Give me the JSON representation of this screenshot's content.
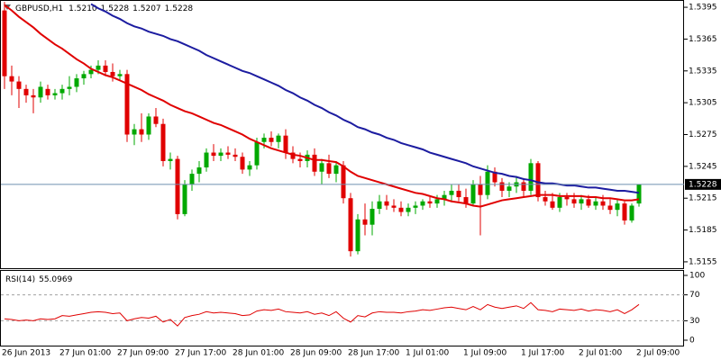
{
  "chart_data": {
    "type": "candlestick",
    "title": "GBPUSD,H1",
    "header_values": [
      "1.5210",
      "1.5228",
      "1.5207",
      "1.5228"
    ],
    "categories": [
      "26 Jun 2013",
      null,
      null,
      null,
      null,
      null,
      null,
      null,
      "27 Jun 01:00",
      null,
      null,
      null,
      null,
      null,
      null,
      null,
      "27 Jun 09:00",
      null,
      null,
      null,
      null,
      null,
      null,
      null,
      "27 Jun 17:00",
      null,
      null,
      null,
      null,
      null,
      null,
      null,
      "28 Jun 01:00",
      null,
      null,
      null,
      null,
      null,
      null,
      null,
      "28 Jun 09:00",
      null,
      null,
      null,
      null,
      null,
      null,
      null,
      "28 Jun 17:00",
      null,
      null,
      null,
      null,
      null,
      null,
      null,
      "1 Jul 01:00",
      null,
      null,
      null,
      null,
      null,
      null,
      null,
      "1 Jul 09:00",
      null,
      null,
      null,
      null,
      null,
      null,
      null,
      "1 Jul 17:00",
      null,
      null,
      null,
      null,
      null,
      null,
      null,
      "2 Jul 01:00",
      null,
      null,
      null,
      null,
      null,
      null,
      null,
      "2 Jul 09:00"
    ],
    "open": [
      1.5392,
      1.533,
      1.5325,
      1.5318,
      1.5312,
      1.531,
      1.5318,
      1.5312,
      1.5314,
      1.5318,
      1.532,
      1.5328,
      1.5332,
      1.5336,
      1.534,
      1.5334,
      1.533,
      1.5332,
      1.5275,
      1.528,
      1.5275,
      1.5292,
      1.5285,
      1.525,
      1.5252,
      1.52,
      1.5228,
      1.5238,
      1.5244,
      1.5258,
      1.5255,
      1.5258,
      1.5256,
      1.5254,
      1.5242,
      1.5246,
      1.5268,
      1.5272,
      1.5268,
      1.5274,
      1.5258,
      1.5252,
      1.525,
      1.5256,
      1.524,
      1.5248,
      1.5238,
      1.5246,
      1.5215,
      1.5165,
      1.5195,
      1.519,
      1.5205,
      1.5212,
      1.5208,
      1.5206,
      1.5202,
      1.5206,
      1.5208,
      1.5212,
      1.521,
      1.5214,
      1.5218,
      1.5222,
      1.5216,
      1.521,
      1.5228,
      1.5218,
      1.524,
      1.523,
      1.5222,
      1.5226,
      1.523,
      1.5222,
      1.5248,
      1.5216,
      1.5212,
      1.5206,
      1.5216,
      1.5214,
      1.521,
      1.5214,
      1.5208,
      1.5212,
      1.5208,
      1.5204,
      1.521,
      1.5194,
      1.521
    ],
    "high": [
      1.54,
      1.534,
      1.533,
      1.5322,
      1.5318,
      1.5325,
      1.5322,
      1.5318,
      1.5322,
      1.533,
      1.5332,
      1.5335,
      1.534,
      1.5345,
      1.5345,
      1.5342,
      1.5336,
      1.5336,
      1.5285,
      1.5295,
      1.5295,
      1.53,
      1.529,
      1.5258,
      1.5255,
      1.5232,
      1.5242,
      1.525,
      1.5262,
      1.5266,
      1.5262,
      1.5264,
      1.5262,
      1.5258,
      1.525,
      1.5272,
      1.5276,
      1.5278,
      1.5276,
      1.528,
      1.5264,
      1.5258,
      1.526,
      1.5262,
      1.5252,
      1.5256,
      1.525,
      1.525,
      1.522,
      1.52,
      1.521,
      1.5212,
      1.5218,
      1.5218,
      1.5214,
      1.5212,
      1.521,
      1.5212,
      1.5214,
      1.5216,
      1.5218,
      1.5222,
      1.5228,
      1.5228,
      1.5224,
      1.5232,
      1.5236,
      1.5246,
      1.5244,
      1.5234,
      1.523,
      1.5236,
      1.5234,
      1.5252,
      1.525,
      1.5222,
      1.522,
      1.522,
      1.522,
      1.522,
      1.5218,
      1.5218,
      1.5216,
      1.5218,
      1.5214,
      1.5214,
      1.5212,
      1.521,
      1.5228
    ],
    "low": [
      1.5318,
      1.5312,
      1.53,
      1.5305,
      1.5295,
      1.5305,
      1.5308,
      1.5308,
      1.5308,
      1.5312,
      1.5315,
      1.5322,
      1.5328,
      1.5332,
      1.533,
      1.5325,
      1.5326,
      1.5268,
      1.5265,
      1.5268,
      1.527,
      1.5282,
      1.5245,
      1.5242,
      1.5195,
      1.5198,
      1.5222,
      1.523,
      1.524,
      1.525,
      1.525,
      1.5252,
      1.525,
      1.5238,
      1.5236,
      1.5242,
      1.5262,
      1.5264,
      1.5262,
      1.5252,
      1.5248,
      1.5244,
      1.5244,
      1.5236,
      1.5228,
      1.5234,
      1.523,
      1.521,
      1.516,
      1.5162,
      1.518,
      1.518,
      1.52,
      1.5204,
      1.5202,
      1.5198,
      1.5198,
      1.52,
      1.5204,
      1.5206,
      1.5206,
      1.5208,
      1.5212,
      1.5212,
      1.5206,
      1.5208,
      1.518,
      1.5214,
      1.5226,
      1.5216,
      1.5216,
      1.522,
      1.5216,
      1.5218,
      1.5212,
      1.5208,
      1.5204,
      1.5202,
      1.5208,
      1.5206,
      1.5204,
      1.5206,
      1.5204,
      1.5204,
      1.52,
      1.5198,
      1.519,
      1.5192,
      1.5207
    ],
    "close": [
      1.533,
      1.5325,
      1.5318,
      1.5312,
      1.531,
      1.532,
      1.5312,
      1.5314,
      1.5318,
      1.532,
      1.5328,
      1.5332,
      1.5336,
      1.534,
      1.5334,
      1.533,
      1.5332,
      1.5275,
      1.528,
      1.5275,
      1.5292,
      1.5285,
      1.525,
      1.5252,
      1.52,
      1.5228,
      1.5238,
      1.5244,
      1.5258,
      1.5255,
      1.5258,
      1.5256,
      1.5254,
      1.5242,
      1.5246,
      1.5268,
      1.5272,
      1.5268,
      1.5274,
      1.5258,
      1.5252,
      1.525,
      1.5256,
      1.524,
      1.5248,
      1.5238,
      1.5246,
      1.5215,
      1.5165,
      1.5195,
      1.519,
      1.5205,
      1.5212,
      1.5208,
      1.5206,
      1.5202,
      1.5206,
      1.5208,
      1.5212,
      1.521,
      1.5214,
      1.5218,
      1.5222,
      1.5216,
      1.521,
      1.5228,
      1.5218,
      1.524,
      1.523,
      1.5222,
      1.5226,
      1.523,
      1.5222,
      1.5248,
      1.5216,
      1.5212,
      1.5206,
      1.5216,
      1.5214,
      1.521,
      1.5214,
      1.5208,
      1.5212,
      1.5208,
      1.5204,
      1.521,
      1.5194,
      1.5208,
      1.5228
    ],
    "up_color": "#00a800",
    "down_color": "#e00000",
    "overlays": [
      {
        "color": "#e00000",
        "values": [
          1.5397,
          1.5392,
          1.5386,
          1.5381,
          1.5376,
          1.537,
          1.5365,
          1.536,
          1.5356,
          1.5351,
          1.5346,
          1.5342,
          1.5337,
          1.5334,
          1.5331,
          1.5329,
          1.5326,
          1.5323,
          1.532,
          1.5317,
          1.5313,
          1.531,
          1.5307,
          1.5303,
          1.53,
          1.5297,
          1.5295,
          1.5292,
          1.5289,
          1.5286,
          1.5284,
          1.5281,
          1.5278,
          1.5275,
          1.5271,
          1.5268,
          1.5265,
          1.5262,
          1.526,
          1.5258,
          1.5256,
          1.5255,
          1.5253,
          1.5251,
          1.5251,
          1.525,
          1.5249,
          1.5245,
          1.524,
          1.5236,
          1.5234,
          1.5232,
          1.523,
          1.5228,
          1.5226,
          1.5224,
          1.5222,
          1.522,
          1.5219,
          1.5217,
          1.5215,
          1.5214,
          1.5212,
          1.5211,
          1.521,
          1.5208,
          1.5207,
          1.5209,
          1.5211,
          1.5213,
          1.5214,
          1.5215,
          1.5216,
          1.5217,
          1.5218,
          1.5218,
          1.5218,
          1.5217,
          1.5217,
          1.5217,
          1.5217,
          1.5216,
          1.5216,
          1.5215,
          1.5215,
          1.5214,
          1.5213,
          1.5213,
          1.5214
        ]
      },
      {
        "color": "#1c1ca0",
        "values": [
          null,
          null,
          null,
          null,
          null,
          null,
          null,
          null,
          null,
          null,
          null,
          null,
          1.5398,
          1.5394,
          1.5391,
          1.5387,
          1.5384,
          1.538,
          1.5377,
          1.5375,
          1.5372,
          1.537,
          1.5368,
          1.5365,
          1.5363,
          1.536,
          1.5357,
          1.5354,
          1.535,
          1.5347,
          1.5344,
          1.5341,
          1.5338,
          1.5335,
          1.5333,
          1.533,
          1.5327,
          1.5324,
          1.5321,
          1.5317,
          1.5314,
          1.531,
          1.5307,
          1.5303,
          1.53,
          1.5296,
          1.5293,
          1.5289,
          1.5286,
          1.5282,
          1.528,
          1.5277,
          1.5275,
          1.5272,
          1.527,
          1.5267,
          1.5265,
          1.5263,
          1.5261,
          1.5258,
          1.5256,
          1.5254,
          1.5252,
          1.525,
          1.5248,
          1.5245,
          1.5243,
          1.5241,
          1.5239,
          1.5238,
          1.5236,
          1.5235,
          1.5233,
          1.5232,
          1.523,
          1.5229,
          1.5229,
          1.5228,
          1.5227,
          1.5227,
          1.5226,
          1.5225,
          1.5225,
          1.5224,
          1.5223,
          1.5222,
          1.5222,
          1.5221,
          1.522
        ]
      }
    ],
    "current_price": 1.5228,
    "current_price_color": "#6f8faf",
    "ylim": [
      1.5149,
      1.5401
    ],
    "yticks": [
      1.5395,
      1.5365,
      1.5335,
      1.5305,
      1.5275,
      1.5245,
      1.5215,
      1.5185,
      1.5155
    ],
    "indicator": {
      "type": "line",
      "title": "RSI(14)",
      "color": "#e00000",
      "values": [
        33,
        32,
        30,
        31,
        30,
        33,
        32,
        33,
        38,
        37,
        39,
        41,
        43,
        44,
        43,
        41,
        42,
        30,
        33,
        35,
        34,
        37,
        28,
        32,
        22,
        35,
        38,
        40,
        44,
        42,
        43,
        42,
        41,
        38,
        39,
        45,
        47,
        46,
        48,
        44,
        43,
        42,
        44,
        40,
        42,
        38,
        44,
        34,
        28,
        38,
        36,
        42,
        44,
        43,
        43,
        42,
        44,
        45,
        47,
        46,
        48,
        50,
        51,
        49,
        47,
        52,
        47,
        55,
        51,
        49,
        51,
        53,
        49,
        58,
        47,
        46,
        44,
        48,
        47,
        46,
        48,
        45,
        47,
        46,
        44,
        47,
        41,
        47,
        55.0969
      ],
      "ylim": [
        0,
        100
      ],
      "yticks": [
        100,
        70,
        30,
        0
      ],
      "levels": [
        70,
        30
      ]
    }
  }
}
